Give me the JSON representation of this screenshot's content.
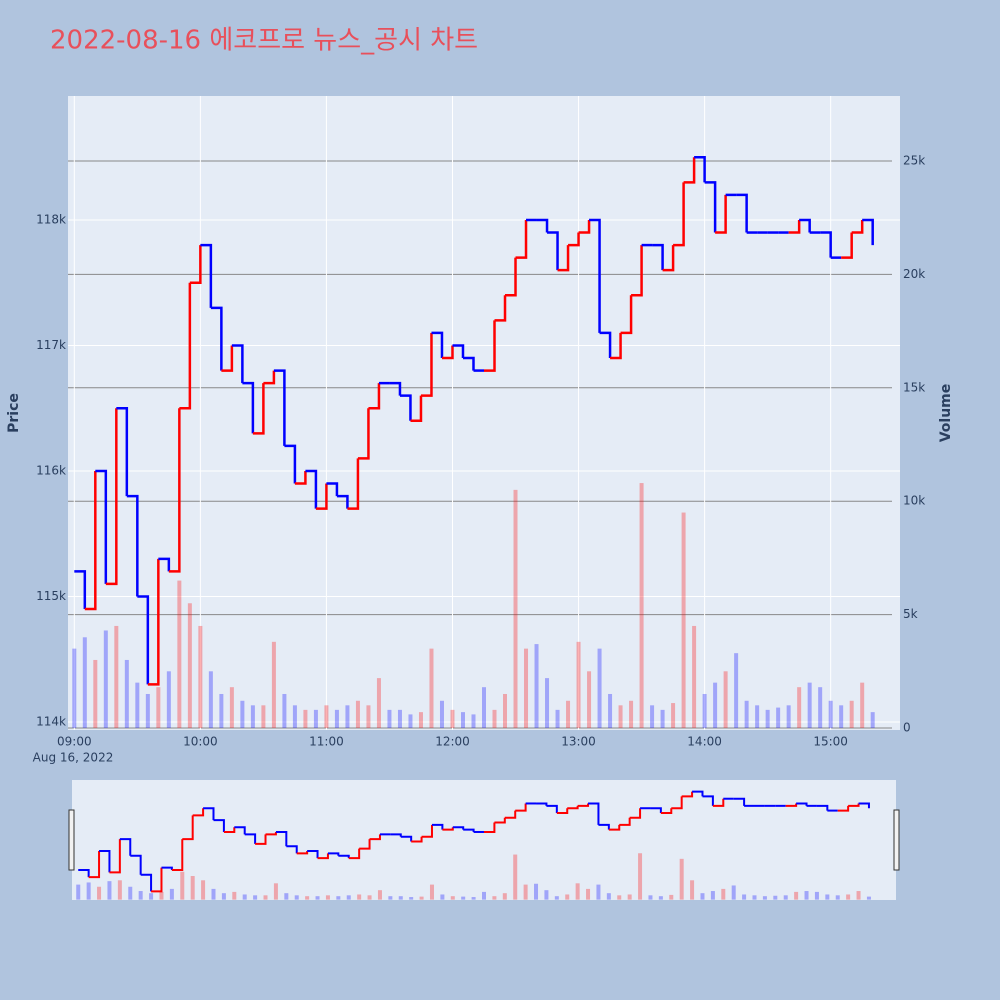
{
  "chart_data": {
    "type": "line",
    "title": "2022-08-16 에코프로 뉴스_공시 차트",
    "ylabel": "Price",
    "y2label": "Volume",
    "xtick_date_label": "Aug 16, 2022",
    "x": [
      "09:00",
      "09:05",
      "09:10",
      "09:15",
      "09:20",
      "09:25",
      "09:30",
      "09:35",
      "09:40",
      "09:45",
      "09:50",
      "09:55",
      "10:00",
      "10:05",
      "10:10",
      "10:15",
      "10:20",
      "10:25",
      "10:30",
      "10:35",
      "10:40",
      "10:45",
      "10:50",
      "10:55",
      "11:00",
      "11:05",
      "11:10",
      "11:15",
      "11:20",
      "11:25",
      "11:30",
      "11:35",
      "11:40",
      "11:45",
      "11:50",
      "11:55",
      "12:00",
      "12:05",
      "12:10",
      "12:15",
      "12:20",
      "12:25",
      "12:30",
      "12:35",
      "12:40",
      "12:45",
      "12:50",
      "12:55",
      "13:00",
      "13:05",
      "13:10",
      "13:15",
      "13:20",
      "13:25",
      "13:30",
      "13:35",
      "13:40",
      "13:45",
      "13:50",
      "13:55",
      "14:00",
      "14:05",
      "14:10",
      "14:15",
      "14:20",
      "14:25",
      "14:30",
      "14:35",
      "14:40",
      "14:45",
      "14:50",
      "14:55",
      "15:00",
      "15:05",
      "15:10",
      "15:15",
      "15:20"
    ],
    "series": [
      {
        "values": [
          115200,
          114900,
          116000,
          115100,
          116500,
          115800,
          115000,
          114300,
          115300,
          115200,
          116500,
          117500,
          117800,
          117300,
          116800,
          117000,
          116700,
          116300,
          116700,
          116800,
          116200,
          115900,
          116000,
          115700,
          115900,
          115800,
          115700,
          116100,
          116500,
          116700,
          116700,
          116600,
          116400,
          116600,
          117100,
          116900,
          117000,
          116900,
          116800,
          116800,
          117200,
          117400,
          117700,
          118000,
          118000,
          117900,
          117600,
          117800,
          117900,
          118000,
          117100,
          116900,
          117100,
          117400,
          117800,
          117800,
          117600,
          117800,
          118300,
          118500,
          118300,
          117900,
          118200,
          118200,
          117900,
          117900,
          117900,
          117900,
          117900,
          118000,
          117900,
          117900,
          117700,
          117700,
          117900,
          118000,
          117800
        ]
      },
      {
        "type": "bar",
        "axis": "y2",
        "values": [
          3500,
          4000,
          3000,
          4300,
          4500,
          3000,
          2000,
          1500,
          1800,
          2500,
          6500,
          5500,
          4500,
          2500,
          1500,
          1800,
          1200,
          1000,
          1000,
          3800,
          1500,
          1000,
          800,
          800,
          1000,
          800,
          1000,
          1200,
          1000,
          2200,
          800,
          800,
          600,
          700,
          3500,
          1200,
          800,
          700,
          600,
          1800,
          800,
          1500,
          10500,
          3500,
          3700,
          2200,
          800,
          1200,
          3800,
          2500,
          3500,
          1500,
          1000,
          1200,
          10800,
          1000,
          800,
          1100,
          9500,
          4500,
          1500,
          2000,
          2500,
          3300,
          1200,
          1000,
          800,
          900,
          1000,
          1800,
          2000,
          1800,
          1200,
          1000,
          1200,
          2000,
          700
        ]
      }
    ],
    "increasing_color": "#ff0000",
    "decreasing_color": "#0000ff",
    "xlim": [
      "08:57",
      "15:33"
    ],
    "xticks": [
      "09:00",
      "10:00",
      "11:00",
      "12:00",
      "13:00",
      "14:00",
      "15:00"
    ],
    "ylim": [
      113936,
      118988
    ],
    "yticks": [
      {
        "value": 114000,
        "label": "114k"
      },
      {
        "value": 115000,
        "label": "115k"
      },
      {
        "value": 116000,
        "label": "116k"
      },
      {
        "value": 117000,
        "label": "117k"
      },
      {
        "value": 118000,
        "label": "118k"
      }
    ],
    "y2lim": [
      -88,
      27866
    ],
    "y2ticks": [
      0,
      {
        "value": 5000,
        "label": "5k"
      },
      {
        "value": 10000,
        "label": "10k"
      },
      {
        "value": 15000,
        "label": "15k"
      },
      {
        "value": 20000,
        "label": "20k"
      },
      {
        "value": 25000,
        "label": "25k"
      }
    ],
    "grid": true
  }
}
